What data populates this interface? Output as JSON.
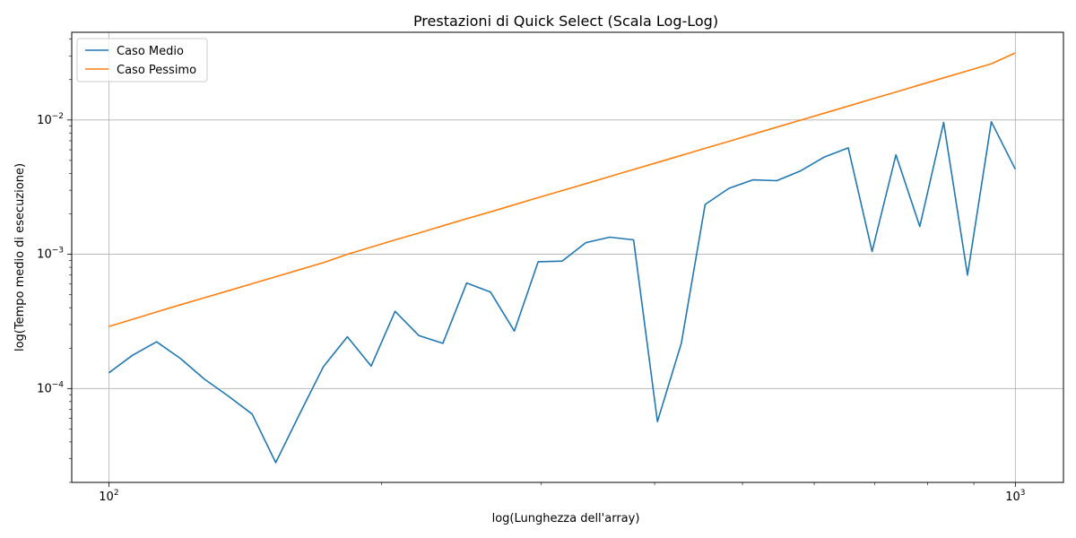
{
  "chart_data": {
    "type": "line",
    "title": "Prestazioni di Quick Select (Scala Log-Log)",
    "xlabel": "log(Lunghezza dell'array)",
    "ylabel": "log(Tempo medio di esecuzione)",
    "xscale": "log",
    "yscale": "log",
    "xlim": [
      91,
      1130
    ],
    "ylim": [
      2e-05,
      0.045
    ],
    "grid": true,
    "legend_position": "top-left",
    "x_ticks": [
      {
        "value": 100,
        "base": "10",
        "exp": "2"
      },
      {
        "value": 1000,
        "base": "10",
        "exp": "3"
      }
    ],
    "y_ticks": [
      {
        "value": 0.0001,
        "base": "10",
        "exp": "−4"
      },
      {
        "value": 0.001,
        "base": "10",
        "exp": "−3"
      },
      {
        "value": 0.01,
        "base": "10",
        "exp": "−2"
      }
    ],
    "x": [
      100,
      106.2,
      112.9,
      120,
      127.4,
      135.4,
      143.9,
      152.8,
      162.4,
      172.5,
      183.3,
      194.7,
      206.9,
      219.8,
      233.6,
      248.2,
      263.6,
      280.1,
      297.6,
      316.2,
      335.9,
      356.9,
      379.2,
      402.9,
      428.1,
      454.8,
      483.2,
      513.4,
      545.5,
      579.5,
      615.7,
      654.2,
      695,
      738.4,
      784.5,
      833.5,
      885.6,
      940.9,
      1000
    ],
    "series": [
      {
        "name": "Caso Medio",
        "color": "#1f77b4",
        "values": [
          0.000131,
          0.000177,
          0.000223,
          0.000167,
          0.000118,
          8.8e-05,
          6.45e-05,
          2.81e-05,
          6.49e-05,
          0.000146,
          0.000243,
          0.000147,
          0.000376,
          0.000248,
          0.000217,
          0.000611,
          0.000523,
          0.000268,
          0.00088,
          0.00089,
          0.00122,
          0.00134,
          0.00128,
          5.67e-05,
          0.000218,
          0.00235,
          0.0031,
          0.00358,
          0.00353,
          0.00418,
          0.0053,
          0.0062,
          0.00105,
          0.0055,
          0.00161,
          0.0096,
          0.0007,
          0.0097,
          0.0043
        ]
      },
      {
        "name": "Caso Pessimo",
        "color": "#ff7f0e",
        "values": [
          0.00029,
          0.000328,
          0.000372,
          0.000421,
          0.000474,
          0.000535,
          0.000604,
          0.000681,
          0.000768,
          0.000866,
          0.001,
          0.00113,
          0.00128,
          0.00144,
          0.00163,
          0.00184,
          0.00207,
          0.00234,
          0.00264,
          0.00298,
          0.00336,
          0.00379,
          0.00428,
          0.00483,
          0.00545,
          0.00615,
          0.00694,
          0.00783,
          0.00884,
          0.00997,
          0.01125,
          0.0127,
          0.01433,
          0.01617,
          0.01824,
          0.02059,
          0.02323,
          0.02622,
          0.0316
        ]
      }
    ]
  }
}
